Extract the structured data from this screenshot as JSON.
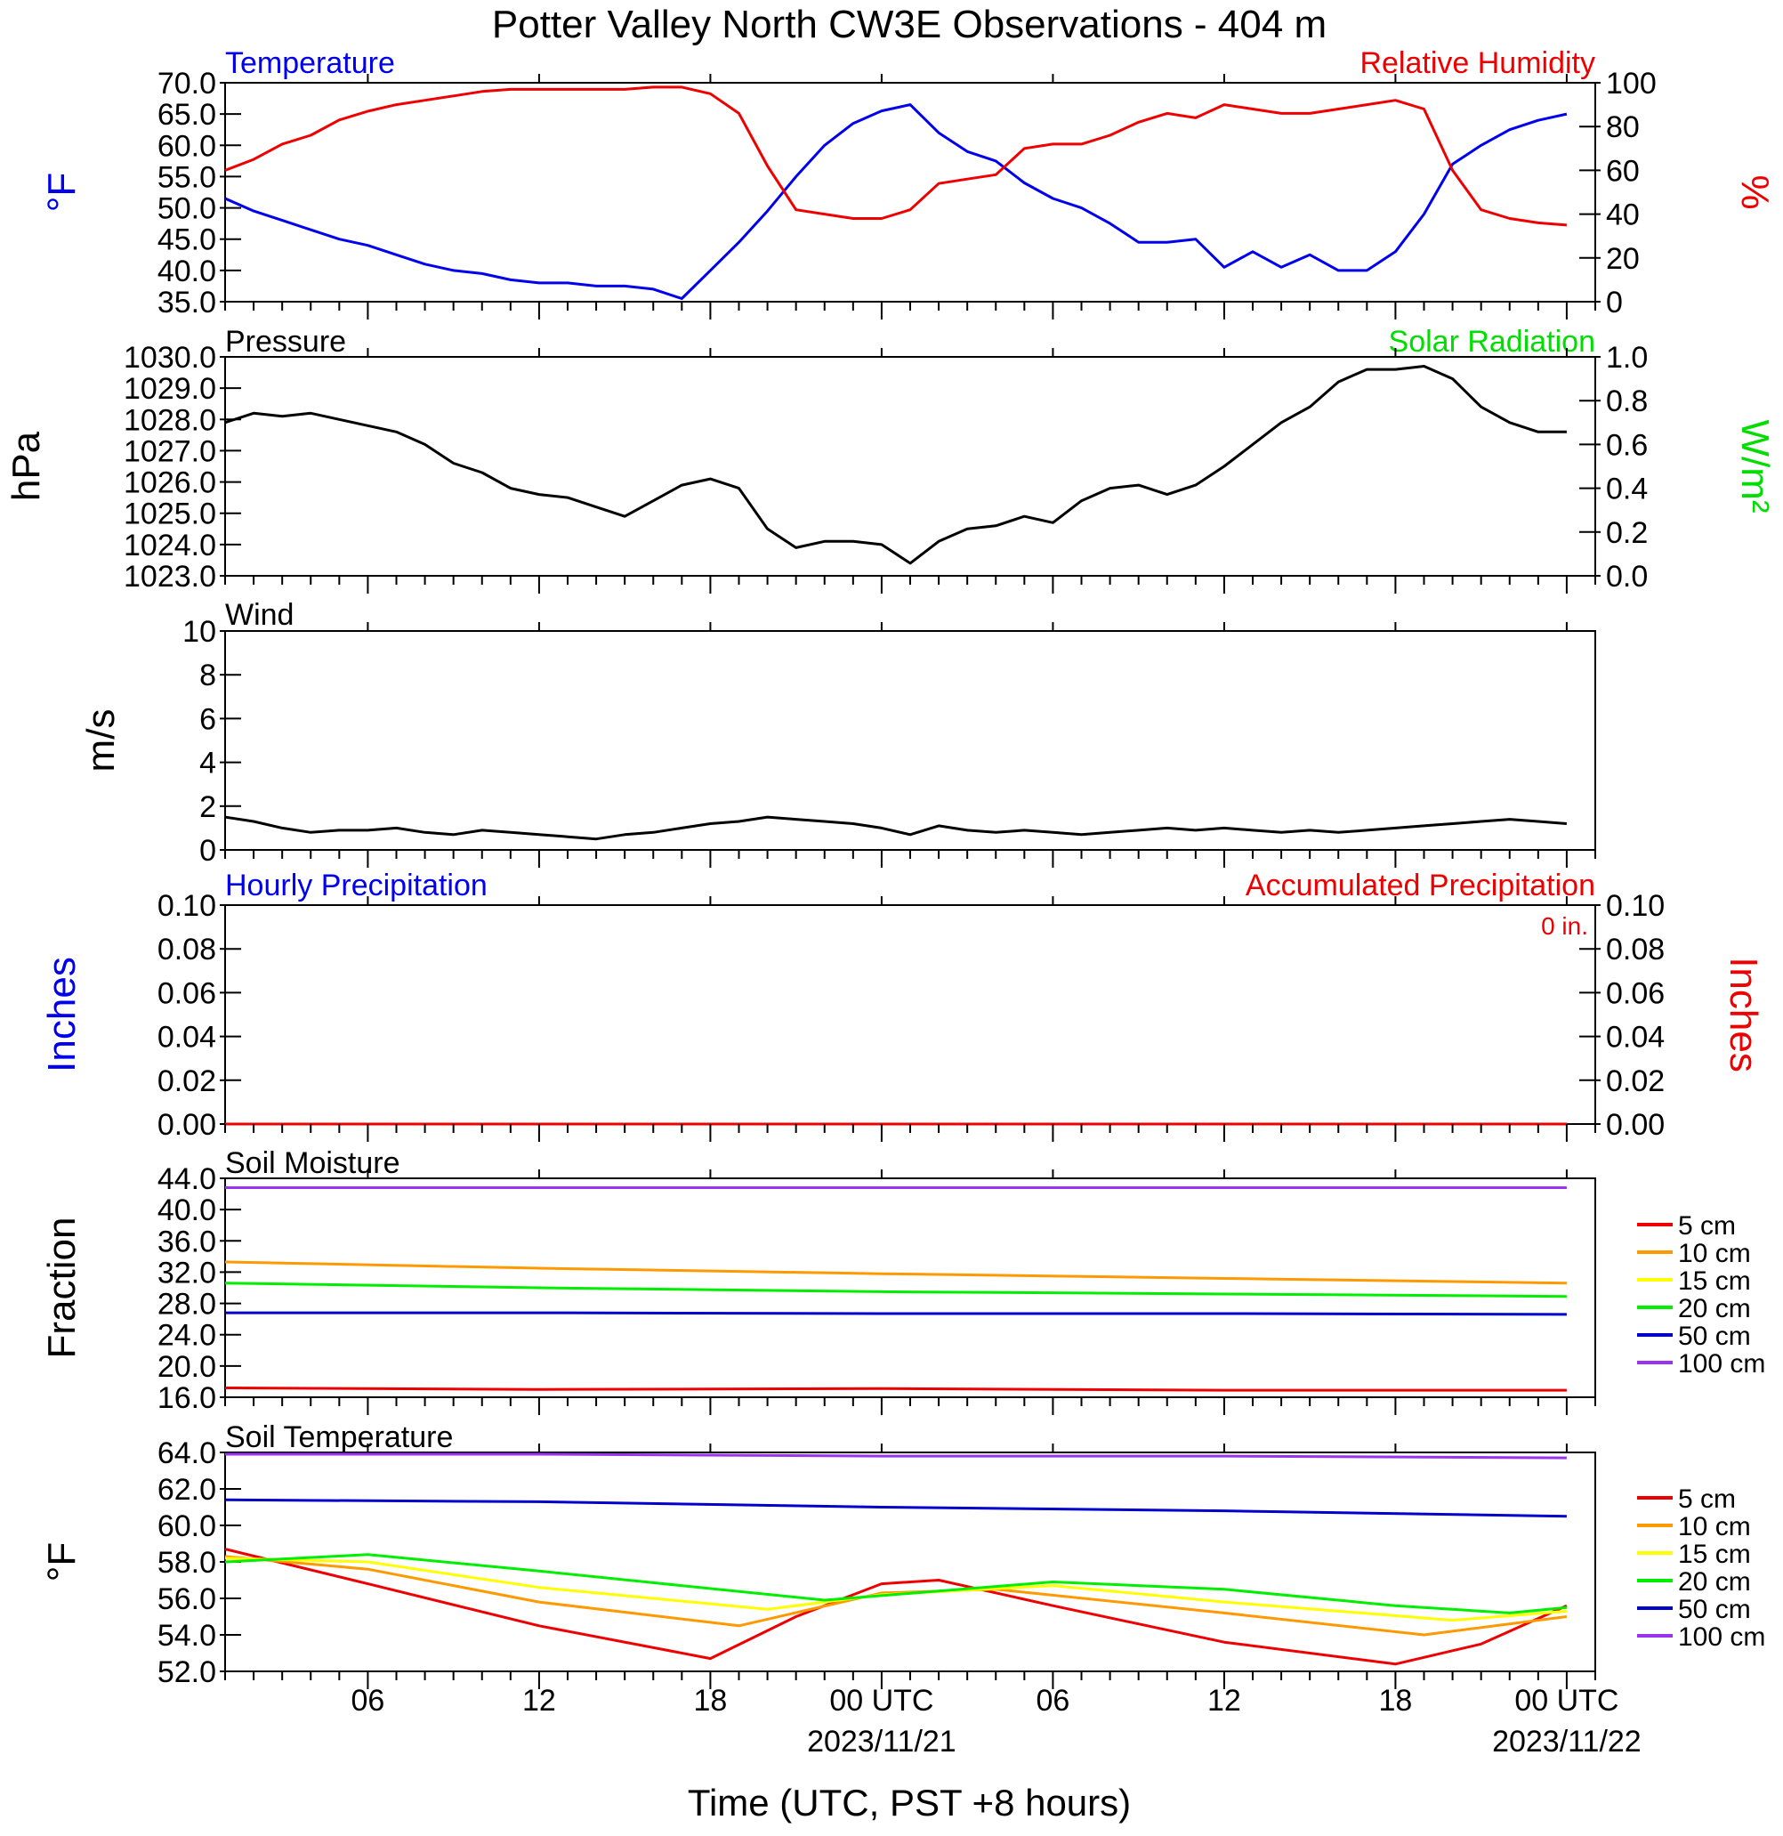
{
  "title": "Potter Valley North CW3E Observations - 404 m",
  "x_axis": {
    "title": "Time (UTC, PST +8 hours)",
    "tick_labels": [
      "06",
      "12",
      "18",
      "00 UTC",
      "06",
      "12",
      "18",
      "00 UTC"
    ],
    "tick_hours": [
      6,
      12,
      18,
      24,
      30,
      36,
      42,
      48
    ],
    "date_labels": [
      {
        "hour": 24,
        "text": "2023/11/21"
      },
      {
        "hour": 48,
        "text": "2023/11/22"
      }
    ],
    "range_hours": [
      1,
      49
    ]
  },
  "panels": {
    "temperature_rh": {
      "left_title": "Temperature",
      "right_title": "Relative Humidity",
      "left_unit": "°F",
      "right_unit": "%",
      "left_ticks": [
        "70.0",
        "65.0",
        "60.0",
        "55.0",
        "50.0",
        "45.0",
        "40.0",
        "35.0"
      ],
      "right_ticks": [
        "100",
        "80",
        "60",
        "40",
        "20",
        "0"
      ]
    },
    "pressure_solar": {
      "left_title": "Pressure",
      "right_title": "Solar Radiation",
      "left_unit": "hPa",
      "right_unit": "W/m²",
      "left_ticks": [
        "1030.0",
        "1029.0",
        "1028.0",
        "1027.0",
        "1026.0",
        "1025.0",
        "1024.0",
        "1023.0"
      ],
      "right_ticks": [
        "1.0",
        "0.8",
        "0.6",
        "0.4",
        "0.2",
        "0.0"
      ]
    },
    "wind": {
      "left_title": "Wind",
      "left_unit": "m/s",
      "left_ticks": [
        "10",
        "8",
        "6",
        "4",
        "2",
        "0"
      ]
    },
    "precip": {
      "left_title": "Hourly Precipitation",
      "right_title": "Accumulated Precipitation",
      "accum_text": "0 in.",
      "left_unit": "Inches",
      "right_unit": "Inches",
      "left_ticks": [
        "0.10",
        "0.08",
        "0.06",
        "0.04",
        "0.02",
        "0.00"
      ],
      "right_ticks": [
        "0.10",
        "0.08",
        "0.06",
        "0.04",
        "0.02",
        "0.00"
      ]
    },
    "soil_moisture": {
      "left_title": "Soil Moisture",
      "left_unit": "Fraction",
      "left_ticks": [
        "44.0",
        "40.0",
        "36.0",
        "32.0",
        "28.0",
        "24.0",
        "20.0",
        "16.0"
      ],
      "legend": [
        "5 cm",
        "10 cm",
        "15 cm",
        "20 cm",
        "50 cm",
        "100 cm"
      ]
    },
    "soil_temperature": {
      "left_title": "Soil Temperature",
      "left_unit": "°F",
      "left_ticks": [
        "64.0",
        "62.0",
        "60.0",
        "58.0",
        "56.0",
        "54.0",
        "52.0"
      ],
      "legend": [
        "5 cm",
        "10 cm",
        "15 cm",
        "20 cm",
        "50 cm",
        "100 cm"
      ]
    }
  },
  "colors": {
    "blue": "#0000ee",
    "red": "#ee0000",
    "green": "#00dd00",
    "black": "#000000",
    "depth_5cm": "#ee0000",
    "depth_10cm": "#ff9900",
    "depth_15cm": "#ffff00",
    "depth_20cm": "#00ee00",
    "depth_50cm": "#0000cc",
    "depth_100cm": "#9933ee"
  },
  "chart_data": [
    {
      "type": "line",
      "panel": "temperature_rh",
      "x_unit": "hours since 2023/11/20 00 UTC",
      "ylim_left": [
        35,
        70
      ],
      "ylim_right": [
        0,
        100
      ],
      "series": [
        {
          "name": "Temperature",
          "axis": "left",
          "color": "#0000ee",
          "x": [
            1,
            2,
            3,
            4,
            5,
            6,
            7,
            8,
            9,
            10,
            11,
            12,
            13,
            14,
            15,
            16,
            17,
            18,
            19,
            20,
            21,
            22,
            23,
            24,
            25,
            26,
            27,
            28,
            29,
            30,
            31,
            32,
            33,
            34,
            35,
            36,
            37,
            38,
            39,
            40,
            41,
            42,
            43,
            44,
            45,
            46,
            47,
            48
          ],
          "values": [
            51.5,
            49.5,
            48,
            46.5,
            45,
            44,
            42.5,
            41,
            40,
            39.5,
            38.5,
            38,
            38,
            37.5,
            37.5,
            37,
            35.5,
            40,
            44.5,
            49.5,
            55,
            60,
            63.5,
            65.5,
            66.5,
            62,
            59,
            57.5,
            54,
            51.5,
            50,
            47.5,
            44.5,
            44.5,
            45,
            40.5,
            43,
            40.5,
            42.5,
            40,
            40,
            43,
            49,
            57,
            60,
            62.5,
            64,
            65
          ]
        },
        {
          "name": "Relative Humidity",
          "axis": "right",
          "color": "#ee0000",
          "x": [
            1,
            2,
            3,
            4,
            5,
            6,
            7,
            8,
            9,
            10,
            11,
            12,
            13,
            14,
            15,
            16,
            17,
            18,
            19,
            20,
            21,
            22,
            23,
            24,
            25,
            26,
            27,
            28,
            29,
            30,
            31,
            32,
            33,
            34,
            35,
            36,
            37,
            38,
            39,
            40,
            41,
            42,
            43,
            44,
            45,
            46,
            47,
            48
          ],
          "values": [
            60,
            65,
            72,
            76,
            83,
            87,
            90,
            92,
            94,
            96,
            97,
            97,
            97,
            97,
            97,
            98,
            98,
            95,
            86,
            62,
            42,
            40,
            38,
            38,
            42,
            54,
            56,
            58,
            70,
            72,
            72,
            76,
            82,
            86,
            84,
            90,
            88,
            86,
            86,
            88,
            90,
            92,
            88,
            60,
            42,
            38,
            36,
            35
          ]
        }
      ]
    },
    {
      "type": "line",
      "panel": "pressure_solar",
      "x_unit": "hours since 2023/11/20 00 UTC",
      "ylim_left": [
        1023,
        1030
      ],
      "ylim_right": [
        0,
        1
      ],
      "series": [
        {
          "name": "Pressure",
          "axis": "left",
          "color": "#000000",
          "x": [
            1,
            2,
            3,
            4,
            5,
            6,
            7,
            8,
            9,
            10,
            11,
            12,
            13,
            14,
            15,
            16,
            17,
            18,
            19,
            20,
            21,
            22,
            23,
            24,
            25,
            26,
            27,
            28,
            29,
            30,
            31,
            32,
            33,
            34,
            35,
            36,
            37,
            38,
            39,
            40,
            41,
            42,
            43,
            44,
            45,
            46,
            47,
            48
          ],
          "values": [
            1027.9,
            1028.2,
            1028.1,
            1028.2,
            1028.0,
            1027.8,
            1027.6,
            1027.2,
            1026.6,
            1026.3,
            1025.8,
            1025.6,
            1025.5,
            1025.2,
            1024.9,
            1025.4,
            1025.9,
            1026.1,
            1025.8,
            1024.5,
            1023.9,
            1024.1,
            1024.1,
            1024.0,
            1023.4,
            1024.1,
            1024.5,
            1024.6,
            1024.9,
            1024.7,
            1025.4,
            1025.8,
            1025.9,
            1025.6,
            1025.9,
            1026.5,
            1027.2,
            1027.9,
            1028.4,
            1029.2,
            1029.6,
            1029.6,
            1029.7,
            1029.3,
            1028.4,
            1027.9,
            1027.6,
            1027.6
          ]
        }
      ]
    },
    {
      "type": "line",
      "panel": "wind",
      "x_unit": "hours since 2023/11/20 00 UTC",
      "ylim": [
        0,
        10
      ],
      "series": [
        {
          "name": "Wind",
          "color": "#000000",
          "x": [
            1,
            2,
            3,
            4,
            5,
            6,
            7,
            8,
            9,
            10,
            11,
            12,
            13,
            14,
            15,
            16,
            17,
            18,
            19,
            20,
            21,
            22,
            23,
            24,
            25,
            26,
            27,
            28,
            29,
            30,
            31,
            32,
            33,
            34,
            35,
            36,
            37,
            38,
            39,
            40,
            41,
            42,
            43,
            44,
            45,
            46,
            47,
            48
          ],
          "values": [
            1.5,
            1.3,
            1.0,
            0.8,
            0.9,
            0.9,
            1.0,
            0.8,
            0.7,
            0.9,
            0.8,
            0.7,
            0.6,
            0.5,
            0.7,
            0.8,
            1.0,
            1.2,
            1.3,
            1.5,
            1.4,
            1.3,
            1.2,
            1.0,
            0.7,
            1.1,
            0.9,
            0.8,
            0.9,
            0.8,
            0.7,
            0.8,
            0.9,
            1.0,
            0.9,
            1.0,
            0.9,
            0.8,
            0.9,
            0.8,
            0.9,
            1.0,
            1.1,
            1.2,
            1.3,
            1.4,
            1.3,
            1.2
          ]
        }
      ]
    },
    {
      "type": "line",
      "panel": "precip",
      "x_unit": "hours since 2023/11/20 00 UTC",
      "ylim": [
        0,
        0.1
      ],
      "series": [
        {
          "name": "Hourly Precipitation",
          "color": "#0000ee",
          "x": [
            1,
            48
          ],
          "values": [
            0,
            0
          ]
        },
        {
          "name": "Accumulated Precipitation",
          "color": "#ee0000",
          "x": [
            1,
            48
          ],
          "values": [
            0,
            0
          ]
        }
      ]
    },
    {
      "type": "line",
      "panel": "soil_moisture",
      "x_unit": "hours since 2023/11/20 00 UTC",
      "ylim": [
        16,
        44
      ],
      "series": [
        {
          "name": "5 cm",
          "color": "#ee0000",
          "x": [
            1,
            12,
            24,
            36,
            48
          ],
          "values": [
            17.2,
            17.0,
            17.1,
            16.9,
            16.9
          ]
        },
        {
          "name": "10 cm",
          "color": "#ff9900",
          "x": [
            1,
            12,
            24,
            36,
            48
          ],
          "values": [
            33.3,
            32.5,
            31.8,
            31.2,
            30.6
          ]
        },
        {
          "name": "20 cm",
          "color": "#00ee00",
          "x": [
            1,
            12,
            24,
            36,
            48
          ],
          "values": [
            30.6,
            30.0,
            29.5,
            29.2,
            28.9
          ]
        },
        {
          "name": "50 cm",
          "color": "#0000cc",
          "x": [
            1,
            12,
            24,
            36,
            48
          ],
          "values": [
            26.8,
            26.8,
            26.7,
            26.7,
            26.6
          ]
        },
        {
          "name": "100 cm",
          "color": "#9933ee",
          "x": [
            1,
            12,
            24,
            36,
            48
          ],
          "values": [
            42.8,
            42.8,
            42.8,
            42.8,
            42.8
          ]
        }
      ]
    },
    {
      "type": "line",
      "panel": "soil_temperature",
      "x_unit": "hours since 2023/11/20 00 UTC",
      "ylim": [
        52,
        64
      ],
      "series": [
        {
          "name": "5 cm",
          "color": "#ee0000",
          "x": [
            1,
            6,
            12,
            18,
            21,
            24,
            26,
            30,
            36,
            42,
            45,
            48
          ],
          "values": [
            58.7,
            56.8,
            54.5,
            52.7,
            55.0,
            56.8,
            57.0,
            55.6,
            53.6,
            52.4,
            53.5,
            55.6
          ]
        },
        {
          "name": "10 cm",
          "color": "#ff9900",
          "x": [
            1,
            6,
            12,
            19,
            24,
            28,
            36,
            43,
            48
          ],
          "values": [
            58.3,
            57.6,
            55.8,
            54.5,
            56.3,
            56.5,
            55.2,
            54.0,
            55.0
          ]
        },
        {
          "name": "15 cm",
          "color": "#ffff00",
          "x": [
            1,
            6,
            12,
            20,
            24,
            30,
            36,
            44,
            48
          ],
          "values": [
            58.2,
            58.0,
            56.6,
            55.4,
            56.2,
            56.7,
            55.8,
            54.8,
            55.3
          ]
        },
        {
          "name": "20 cm",
          "color": "#00ee00",
          "x": [
            1,
            6,
            12,
            22,
            30,
            36,
            42,
            46,
            48
          ],
          "values": [
            58.0,
            58.4,
            57.5,
            55.9,
            56.9,
            56.5,
            55.6,
            55.2,
            55.5
          ]
        },
        {
          "name": "50 cm",
          "color": "#0000cc",
          "x": [
            1,
            12,
            24,
            36,
            48
          ],
          "values": [
            61.4,
            61.3,
            61.0,
            60.8,
            60.5
          ]
        },
        {
          "name": "100 cm",
          "color": "#9933ee",
          "x": [
            1,
            12,
            24,
            36,
            48
          ],
          "values": [
            63.9,
            63.9,
            63.8,
            63.8,
            63.7
          ]
        }
      ]
    }
  ]
}
